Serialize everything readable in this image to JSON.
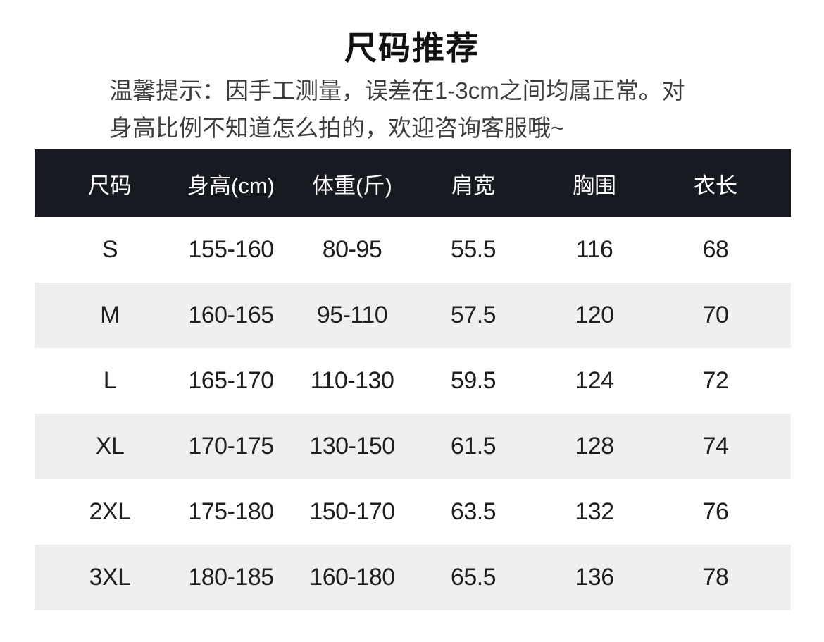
{
  "title": "尺码推荐",
  "notice": {
    "line1": "温馨提示：因手工测量，误差在1-3cm之间均属正常。对",
    "line2": "身高比例不知道怎么拍的，欢迎咨询客服哦~"
  },
  "colors": {
    "header_bg": "#171a20",
    "header_text": "#ffffff",
    "row_bg": "#ffffff",
    "row_alt_bg": "#efefef",
    "body_text": "#1f1f1f",
    "notice_text": "#3d3d3d",
    "title_text": "#111111"
  },
  "chart_data": {
    "type": "table",
    "title": "尺码推荐",
    "columns": [
      "尺码",
      "身高(cm)",
      "体重(斤)",
      "肩宽",
      "胸围",
      "衣长"
    ],
    "rows": [
      [
        "S",
        "155-160",
        "80-95",
        "55.5",
        "116",
        "68"
      ],
      [
        "M",
        "160-165",
        "95-110",
        "57.5",
        "120",
        "70"
      ],
      [
        "L",
        "165-170",
        "110-130",
        "59.5",
        "124",
        "72"
      ],
      [
        "XL",
        "170-175",
        "130-150",
        "61.5",
        "128",
        "74"
      ],
      [
        "2XL",
        "175-180",
        "150-170",
        "63.5",
        "132",
        "76"
      ],
      [
        "3XL",
        "180-185",
        "160-180",
        "65.5",
        "136",
        "78"
      ]
    ],
    "layout_hints": {
      "zebra_striping": "even rows shaded",
      "header_style": "dark bar, white text",
      "grid": false
    }
  }
}
